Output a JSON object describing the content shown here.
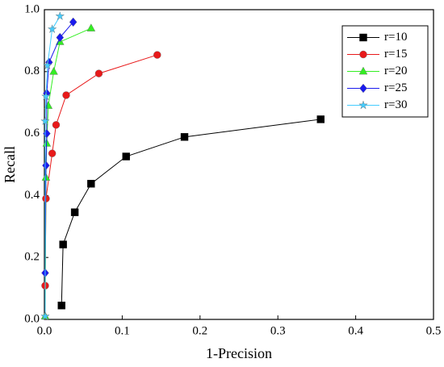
{
  "chart_data": {
    "type": "line",
    "x_label": "1-Precision",
    "y_label": "Recall",
    "xlim": [
      0,
      0.5
    ],
    "ylim": [
      0,
      1
    ],
    "xticks": [
      {
        "value": 0,
        "label": "0.0"
      },
      0.1,
      0.2,
      0.3,
      0.4,
      0.5
    ],
    "yticks": [
      {
        "value": 0,
        "label": "0.0"
      },
      0.2,
      0.4,
      0.6,
      0.8,
      {
        "value": 1,
        "label": "1.0"
      }
    ],
    "legend": "upper right",
    "series": [
      {
        "name": "r=10",
        "color": "#000000",
        "marker": "square",
        "x": [
          0.022,
          0.024,
          0.039,
          0.06,
          0.105,
          0.18,
          0.355
        ],
        "values": [
          0.045,
          0.242,
          0.346,
          0.438,
          0.526,
          0.589,
          0.646
        ]
      },
      {
        "name": "r=15",
        "color": "#e8191a",
        "marker": "circle",
        "x": [
          0.001,
          0.002,
          0.01,
          0.015,
          0.028,
          0.07,
          0.145
        ],
        "values": [
          0.109,
          0.39,
          0.536,
          0.628,
          0.724,
          0.794,
          0.854
        ]
      },
      {
        "name": "r=20",
        "color": "#33ee22",
        "marker": "triangle",
        "x": [
          0.001,
          0.002,
          0.003,
          0.005,
          0.012,
          0.02,
          0.06
        ],
        "values": [
          0.01,
          0.458,
          0.568,
          0.69,
          0.8,
          0.896,
          0.94
        ]
      },
      {
        "name": "r=25",
        "color": "#1a1aee",
        "marker": "diamond",
        "x": [
          0.001,
          0.002,
          0.003,
          0.003,
          0.006,
          0.02,
          0.037
        ],
        "values": [
          0.15,
          0.497,
          0.6,
          0.73,
          0.83,
          0.91,
          0.96
        ]
      },
      {
        "name": "r=30",
        "color": "#44ccff",
        "marker": "star",
        "x": [
          0.001,
          0.001,
          0.002,
          0.004,
          0.01,
          0.02
        ],
        "values": [
          0.01,
          0.64,
          0.72,
          0.82,
          0.937,
          0.979
        ]
      }
    ]
  }
}
